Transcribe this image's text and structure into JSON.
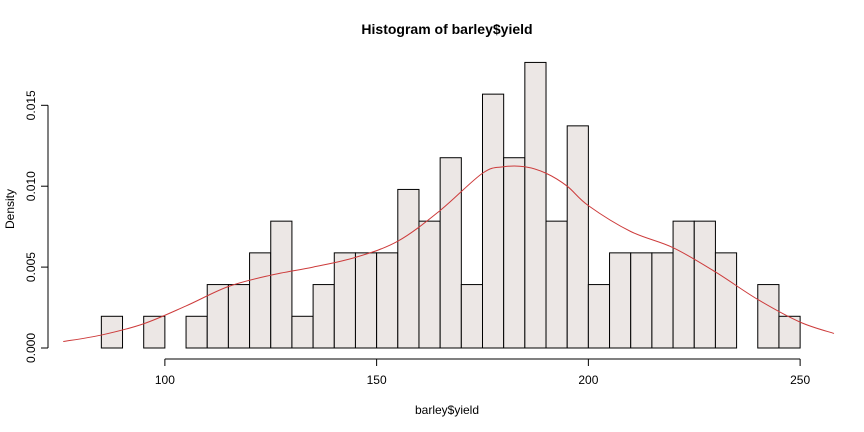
{
  "chart_data": {
    "type": "bar",
    "title": "Histogram of barley$yield",
    "xlabel": "barley$yield",
    "ylabel": "Density",
    "xlim": [
      75,
      258
    ],
    "ylim": [
      0,
      0.0178
    ],
    "x_ticks": [
      100,
      150,
      200,
      250
    ],
    "y_ticks": [
      0.0,
      0.005,
      0.01,
      0.015
    ],
    "y_tick_labels": [
      "0.000",
      "0.005",
      "0.010",
      "0.015"
    ],
    "bin_width": 5,
    "bins": [
      {
        "start": 85,
        "density": 0.00196
      },
      {
        "start": 90,
        "density": 0.0
      },
      {
        "start": 95,
        "density": 0.00196
      },
      {
        "start": 100,
        "density": 0.0
      },
      {
        "start": 105,
        "density": 0.00196
      },
      {
        "start": 110,
        "density": 0.00392
      },
      {
        "start": 115,
        "density": 0.00392
      },
      {
        "start": 120,
        "density": 0.00588
      },
      {
        "start": 125,
        "density": 0.00784
      },
      {
        "start": 130,
        "density": 0.00196
      },
      {
        "start": 135,
        "density": 0.00392
      },
      {
        "start": 140,
        "density": 0.00588
      },
      {
        "start": 145,
        "density": 0.00588
      },
      {
        "start": 150,
        "density": 0.00588
      },
      {
        "start": 155,
        "density": 0.0098
      },
      {
        "start": 160,
        "density": 0.00784
      },
      {
        "start": 165,
        "density": 0.01176
      },
      {
        "start": 170,
        "density": 0.00392
      },
      {
        "start": 175,
        "density": 0.01569
      },
      {
        "start": 180,
        "density": 0.01176
      },
      {
        "start": 185,
        "density": 0.01765
      },
      {
        "start": 190,
        "density": 0.00784
      },
      {
        "start": 195,
        "density": 0.01373
      },
      {
        "start": 200,
        "density": 0.00392
      },
      {
        "start": 205,
        "density": 0.00588
      },
      {
        "start": 210,
        "density": 0.00588
      },
      {
        "start": 215,
        "density": 0.00588
      },
      {
        "start": 220,
        "density": 0.00784
      },
      {
        "start": 225,
        "density": 0.00784
      },
      {
        "start": 230,
        "density": 0.00588
      },
      {
        "start": 235,
        "density": 0.0
      },
      {
        "start": 240,
        "density": 0.00392
      },
      {
        "start": 245,
        "density": 0.00196
      }
    ],
    "density_curve": {
      "x": [
        76,
        85,
        95,
        105,
        115,
        125,
        135,
        145,
        155,
        165,
        175,
        180,
        185,
        190,
        195,
        200,
        210,
        220,
        230,
        240,
        250,
        258
      ],
      "y": [
        0.0004,
        0.0008,
        0.0015,
        0.0026,
        0.0038,
        0.0045,
        0.005,
        0.0056,
        0.0066,
        0.0085,
        0.0108,
        0.0112,
        0.0112,
        0.0108,
        0.01,
        0.0088,
        0.0072,
        0.0062,
        0.0047,
        0.003,
        0.0016,
        0.0009
      ]
    },
    "grid": false,
    "colors": {
      "bar_fill": "#ece7e5",
      "bar_stroke": "#000000",
      "density_line": "#cd3b3b"
    }
  }
}
